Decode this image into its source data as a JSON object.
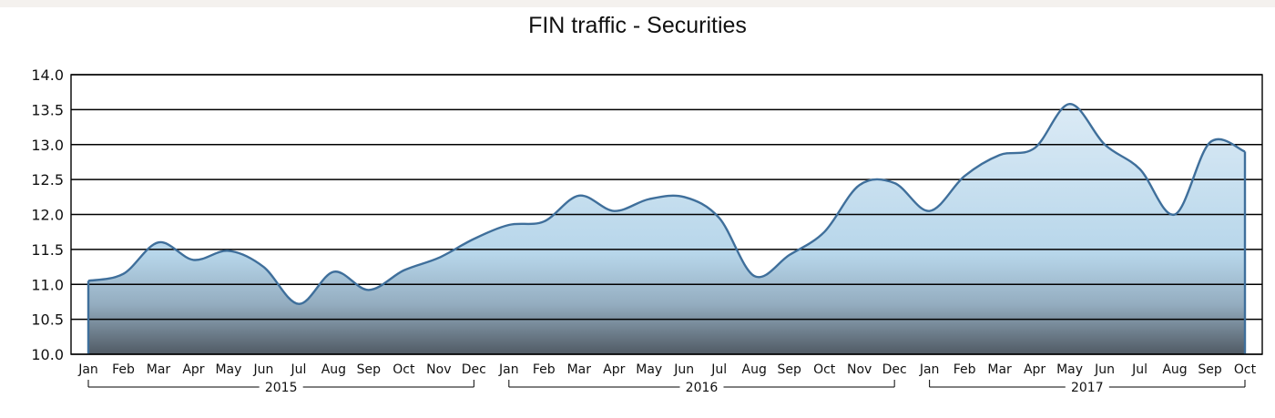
{
  "chart_data": {
    "type": "area",
    "title": "FIN traffic - Securities",
    "xlabel": "",
    "ylabel": "",
    "ylim": [
      10.0,
      14.0
    ],
    "yticks": [
      "10.0",
      "10.5",
      "11.0",
      "11.5",
      "12.0",
      "12.5",
      "13.0",
      "13.5",
      "14.0"
    ],
    "grid": true,
    "legend": "none",
    "colors": {
      "fill_top": "#d6e8f5",
      "fill_mid": "#b8d7ea",
      "fill_bottom": "#5c6a78",
      "line": "#3f6f9b",
      "grid": "#000000"
    },
    "years": [
      {
        "label": "2015",
        "months": [
          "Jan",
          "Feb",
          "Mar",
          "Apr",
          "May",
          "Jun",
          "Jul",
          "Aug",
          "Sep",
          "Oct",
          "Nov",
          "Dec"
        ]
      },
      {
        "label": "2016",
        "months": [
          "Jan",
          "Feb",
          "Mar",
          "Apr",
          "May",
          "Jun",
          "Jul",
          "Aug",
          "Sep",
          "Oct",
          "Nov",
          "Dec"
        ]
      },
      {
        "label": "2017",
        "months": [
          "Jan",
          "Feb",
          "Mar",
          "Apr",
          "May",
          "Jun",
          "Jul",
          "Aug",
          "Sep",
          "Oct"
        ]
      }
    ],
    "values": [
      11.05,
      11.15,
      11.6,
      11.35,
      11.48,
      11.25,
      10.72,
      11.18,
      10.92,
      11.2,
      11.38,
      11.65,
      11.85,
      11.9,
      12.27,
      12.05,
      12.22,
      12.25,
      11.95,
      11.12,
      11.42,
      11.75,
      12.42,
      12.45,
      12.05,
      12.55,
      12.85,
      12.95,
      13.58,
      13.0,
      12.65,
      12.0,
      13.03,
      12.9
    ]
  }
}
